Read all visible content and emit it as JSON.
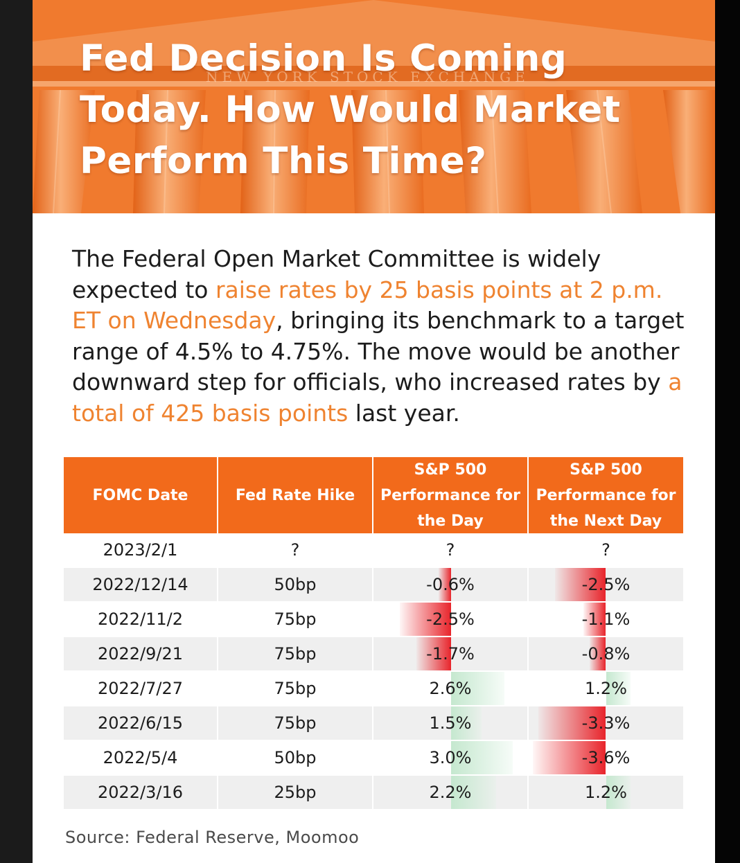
{
  "banner": {
    "title_line1": "Fed Decision Is Coming",
    "title_line2": "Today. How Would Market",
    "title_line3": "Perform This Time?",
    "engraving": "NEW YORK STOCK EXCHANGE"
  },
  "intro": {
    "p1": "The Federal Open Market Committee is widely expected to ",
    "h1": "raise rates by 25 basis points at 2 p.m. ET on Wednesday",
    "p2": ", bringing its benchmark to a target range of 4.5% to 4.75%. The move would be another downward step for officials, who increased rates by ",
    "h2": "a total of 425 basis points",
    "p3": " last year."
  },
  "table": {
    "headers": [
      "FOMC Date",
      "Fed Rate Hike",
      "S&P 500 Performance for the Day",
      "S&P 500 Performance for the Next Day"
    ],
    "rows": [
      {
        "date": "2023/2/1",
        "hike": "?",
        "day": "?",
        "next": "?",
        "day_v": null,
        "next_v": null
      },
      {
        "date": "2022/12/14",
        "hike": "50bp",
        "day": "-0.6%",
        "next": "-2.5%",
        "day_v": -0.6,
        "next_v": -2.5
      },
      {
        "date": "2022/11/2",
        "hike": "75bp",
        "day": "-2.5%",
        "next": "-1.1%",
        "day_v": -2.5,
        "next_v": -1.1
      },
      {
        "date": "2022/9/21",
        "hike": "75bp",
        "day": "-1.7%",
        "next": "-0.8%",
        "day_v": -1.7,
        "next_v": -0.8
      },
      {
        "date": "2022/7/27",
        "hike": "75bp",
        "day": "2.6%",
        "next": "1.2%",
        "day_v": 2.6,
        "next_v": 1.2
      },
      {
        "date": "2022/6/15",
        "hike": "75bp",
        "day": "1.5%",
        "next": "-3.3%",
        "day_v": 1.5,
        "next_v": -3.3
      },
      {
        "date": "2022/5/4",
        "hike": "50bp",
        "day": "3.0%",
        "next": "-3.6%",
        "day_v": 3.0,
        "next_v": -3.6
      },
      {
        "date": "2022/3/16",
        "hike": "25bp",
        "day": "2.2%",
        "next": "1.2%",
        "day_v": 2.2,
        "next_v": 1.2
      }
    ]
  },
  "source": "Source: Federal Reserve,  Moomoo",
  "colors": {
    "accent": "#f26a1b",
    "highlight": "#ef8330",
    "negative": "#e8242b",
    "positive": "#c5e8cf"
  }
}
